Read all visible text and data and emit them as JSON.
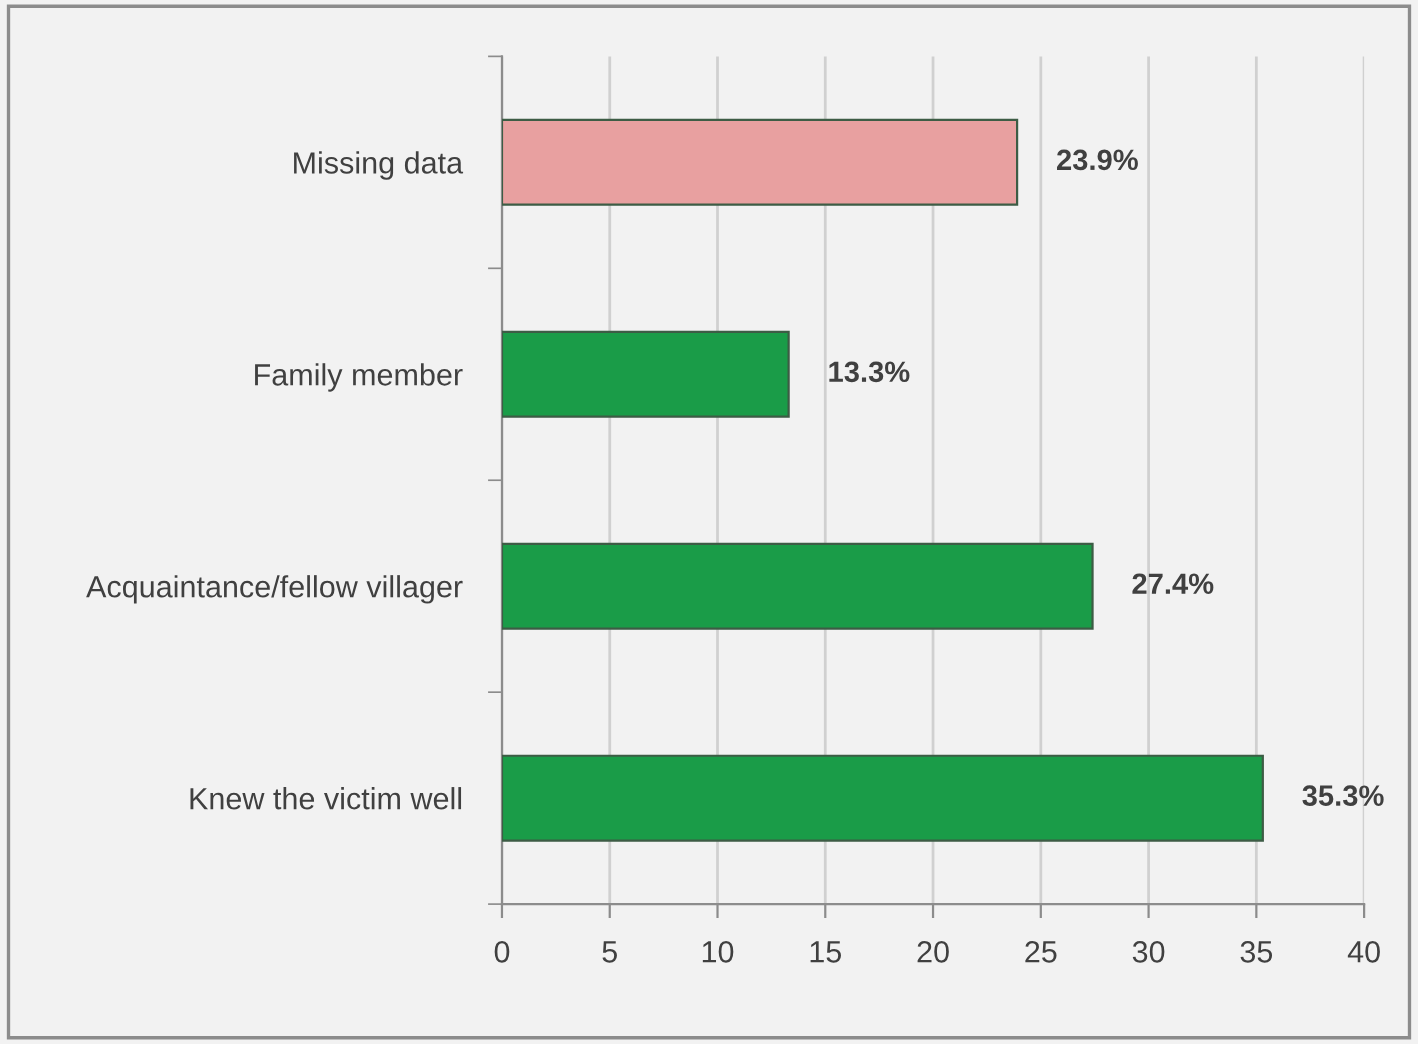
{
  "chart_data": {
    "type": "bar",
    "orientation": "horizontal",
    "categories": [
      "Missing data",
      "Family member",
      "Acquaintance/fellow villager",
      "Knew the victim well"
    ],
    "values": [
      23.9,
      13.3,
      27.4,
      35.3
    ],
    "colors": [
      "#e8a0a0",
      "#1a9c48",
      "#1a9c48",
      "#1a9c48"
    ],
    "value_labels": [
      "23.9%",
      "13.3%",
      "27.4%",
      "35.3%"
    ],
    "xlim": [
      0,
      40
    ],
    "xticks": [
      0,
      5,
      10,
      15,
      20,
      25,
      30,
      35,
      40
    ],
    "grid": "x"
  }
}
